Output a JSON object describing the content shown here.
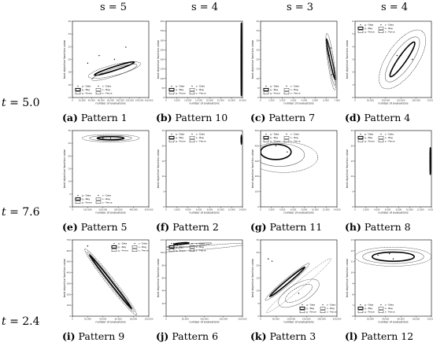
{
  "column_headers": [
    "s = 5",
    "s = 4",
    "s = 3",
    "s = 4"
  ],
  "row_labels": [
    {
      "var": "t",
      "rest": " = 5.0"
    },
    {
      "var": "t",
      "rest": " = 7.6"
    },
    {
      "var": "t",
      "rest": " = 2.4"
    }
  ],
  "shared_axes": {
    "xlabel": "number of evaluations",
    "ylabel": "best objective function value"
  },
  "legend_entries": [
    "g - Data",
    "s - Data",
    "g - Bag",
    "s - Bag",
    "g - Fence",
    "s - Fence"
  ],
  "chart_data": [
    {
      "type": "scatter",
      "letter": "(a)",
      "title": "Pattern 1",
      "xticks": [
        "0",
        "20,000",
        "40,000",
        "60,000",
        "80,000",
        "100,000",
        "120,000",
        "140,000",
        "160,000"
      ],
      "yticks": [
        "14",
        "16",
        "18",
        "20",
        "22",
        "24",
        "26"
      ],
      "points": [
        [
          0.35,
          0.55
        ],
        [
          0.55,
          0.5
        ],
        [
          0.7,
          0.66
        ],
        [
          0.2,
          0.45
        ],
        [
          0.6,
          0.42
        ]
      ],
      "ellipses": [
        [
          0.55,
          0.38,
          0.55,
          0.05,
          -18
        ],
        [
          0.55,
          0.33,
          0.62,
          0.1,
          -18
        ],
        [
          0.55,
          0.36,
          0.7,
          0.14,
          -14
        ]
      ],
      "legend": "bottom-left"
    },
    {
      "type": "scatter",
      "letter": "(b)",
      "title": "Pattern 10",
      "xticks": [
        "0",
        "5,000",
        "10,000",
        "15,000",
        "20,000",
        "25,000",
        "30,000",
        "35,000"
      ],
      "yticks": [
        "0",
        "50",
        "100",
        "150",
        "200",
        "250",
        "300",
        "350",
        "400"
      ],
      "points": [
        [
          0.98,
          0.6
        ]
      ],
      "ellipses": [
        [
          0.985,
          0.5,
          0.005,
          0.95,
          0
        ]
      ],
      "legend": "bottom-left"
    },
    {
      "type": "scatter",
      "letter": "(c)",
      "title": "Pattern 7",
      "xticks": [
        "0",
        "1,000",
        "2,000",
        "3,000",
        "4,000",
        "5,000",
        "6,000",
        "7,000"
      ],
      "yticks": [
        "0",
        "5",
        "10",
        "15",
        "20",
        "25",
        "30",
        "35",
        "40"
      ],
      "points": [
        [
          0.93,
          0.3
        ],
        [
          0.9,
          0.55
        ],
        [
          0.92,
          0.65
        ]
      ],
      "ellipses": [
        [
          0.92,
          0.5,
          0.55,
          0.03,
          78
        ],
        [
          0.92,
          0.45,
          0.6,
          0.05,
          80
        ],
        [
          0.92,
          0.47,
          0.75,
          0.08,
          82
        ]
      ],
      "legend": "bottom-left"
    },
    {
      "type": "scatter",
      "letter": "(d)",
      "title": "Pattern 4",
      "xticks": [
        "0",
        "50,000",
        "100,000",
        "150,000",
        "200,000",
        "250,000"
      ],
      "yticks": [
        "0",
        "1",
        "2",
        "3",
        "4",
        "5",
        "6"
      ],
      "points": [
        [
          0.55,
          0.55
        ],
        [
          0.6,
          0.55
        ],
        [
          0.75,
          0.5
        ]
      ],
      "ellipses": [
        [
          0.62,
          0.5,
          0.55,
          0.1,
          -55
        ],
        [
          0.62,
          0.5,
          0.7,
          0.25,
          -55
        ],
        [
          0.62,
          0.5,
          0.9,
          0.4,
          -55
        ]
      ],
      "legend": "top-left"
    },
    {
      "type": "scatter",
      "letter": "(e)",
      "title": "Pattern 5",
      "xticks": [
        "0",
        "100,000",
        "200,000",
        "300,000",
        "400,000",
        "500,000"
      ],
      "yticks": [
        "0",
        "5",
        "10",
        "15",
        "20",
        "25",
        "30"
      ],
      "points": [
        [
          0.5,
          0.9
        ],
        [
          0.6,
          0.88
        ],
        [
          0.4,
          0.9
        ]
      ],
      "ellipses": [
        [
          0.5,
          0.9,
          0.35,
          0.04,
          0
        ],
        [
          0.5,
          0.9,
          0.55,
          0.07,
          0
        ],
        [
          0.5,
          0.9,
          0.75,
          0.1,
          0
        ]
      ],
      "legend": "bottom-left"
    },
    {
      "type": "scatter",
      "letter": "(f)",
      "title": "Pattern 2",
      "xticks": [
        "0",
        "2,000",
        "4,000",
        "6,000",
        "8,000",
        "10,000",
        "12,000",
        "14,000"
      ],
      "yticks": [
        "0",
        "5",
        "10",
        "15",
        "20",
        "25"
      ],
      "points": [
        [
          0.98,
          0.9
        ]
      ],
      "ellipses": [
        [
          0.985,
          0.88,
          0.005,
          0.12,
          0
        ]
      ],
      "legend": "top-left"
    },
    {
      "type": "scatter",
      "letter": "(g)",
      "title": "Pattern 11",
      "xticks": [
        "0",
        "2,000",
        "4,000",
        "6,000",
        "8,000",
        "10,000",
        "12,000",
        "14,000"
      ],
      "yticks": [
        "0",
        "100",
        "200",
        "300",
        "400",
        "500"
      ],
      "points": [
        [
          0.2,
          0.8
        ],
        [
          0.35,
          0.72
        ]
      ],
      "ellipses": [
        [
          0.2,
          0.72,
          0.4,
          0.2,
          0
        ],
        [
          0.25,
          0.68,
          0.65,
          0.3,
          0
        ],
        [
          0.3,
          0.65,
          0.9,
          0.4,
          0
        ]
      ],
      "legend": "top-left"
    },
    {
      "type": "scatter",
      "letter": "(h)",
      "title": "Pattern 8",
      "xticks": [
        "0",
        "2,000",
        "4,000",
        "6,000",
        "8,000",
        "10,000",
        "12,000",
        "14,000"
      ],
      "yticks": [
        "0",
        "5",
        "10",
        "15",
        "20",
        "25"
      ],
      "points": [
        [
          0.98,
          0.7
        ],
        [
          0.98,
          0.6
        ]
      ],
      "ellipses": [
        [
          0.985,
          0.6,
          0.005,
          0.35,
          0
        ]
      ],
      "legend": "top-left"
    },
    {
      "type": "scatter",
      "letter": "(i)",
      "title": "Pattern 9",
      "xticks": [
        "0",
        "20,000",
        "40,000",
        "60,000",
        "80,000",
        "100,000"
      ],
      "yticks": [
        "0",
        "100",
        "200",
        "300",
        "400",
        "500",
        "600",
        "700"
      ],
      "points": [
        [
          0.2,
          0.92
        ]
      ],
      "ellipses": [
        [
          0.5,
          0.45,
          0.9,
          0.03,
          52
        ],
        [
          0.5,
          0.45,
          1.0,
          0.06,
          52
        ],
        [
          0.5,
          0.45,
          1.1,
          0.1,
          52
        ]
      ],
      "legend": "top-right"
    },
    {
      "type": "scatter",
      "letter": "(j)",
      "title": "Pattern 6",
      "xticks": [
        "0",
        "50,000",
        "100,000",
        "150,000",
        "200,000"
      ],
      "yticks": [
        "0",
        "20",
        "40",
        "60",
        "80",
        "100",
        "120"
      ],
      "points": [
        [
          0.1,
          0.95
        ],
        [
          0.15,
          0.93
        ]
      ],
      "ellipses": [
        [
          0.2,
          0.95,
          0.2,
          0.02,
          -5
        ],
        [
          0.3,
          0.93,
          0.6,
          0.03,
          -5
        ],
        [
          0.5,
          0.9,
          1.2,
          0.05,
          -5
        ]
      ],
      "legend": "top-left"
    },
    {
      "type": "scatter",
      "letter": "(k)",
      "title": "Pattern 3",
      "xticks": [
        "0",
        "50,000",
        "100,000",
        "150,000",
        "200,000",
        "250,000"
      ],
      "yticks": [
        "0",
        "5",
        "10",
        "15",
        "20",
        "25",
        "30"
      ],
      "points": [
        [
          0.1,
          0.75
        ],
        [
          0.15,
          0.72
        ],
        [
          0.5,
          0.3
        ]
      ],
      "ellipses": [
        [
          0.35,
          0.45,
          0.6,
          0.04,
          -40
        ],
        [
          0.35,
          0.45,
          0.75,
          0.08,
          -40
        ],
        [
          0.5,
          0.3,
          0.4,
          0.15,
          -30
        ],
        [
          0.5,
          0.3,
          0.6,
          0.25,
          -30
        ],
        [
          0.5,
          0.4,
          1.1,
          0.1,
          -40
        ]
      ],
      "legend": "bottom-right"
    },
    {
      "type": "scatter",
      "letter": "(l)",
      "title": "Pattern 12",
      "xticks": [
        "0",
        "20,000",
        "40,000",
        "60,000",
        "80,000",
        "100,000"
      ],
      "yticks": [
        "6",
        "7",
        "8",
        "9",
        "10",
        "11",
        "12",
        "13"
      ],
      "points": [
        [
          0.3,
          0.8
        ],
        [
          0.45,
          0.82
        ],
        [
          0.5,
          0.75
        ],
        [
          0.75,
          0.8
        ]
      ],
      "ellipses": [
        [
          0.5,
          0.78,
          0.55,
          0.12,
          0
        ],
        [
          0.5,
          0.78,
          0.8,
          0.18,
          0
        ],
        [
          0.5,
          0.78,
          1.0,
          0.25,
          0
        ]
      ],
      "legend": "bottom-left"
    }
  ]
}
